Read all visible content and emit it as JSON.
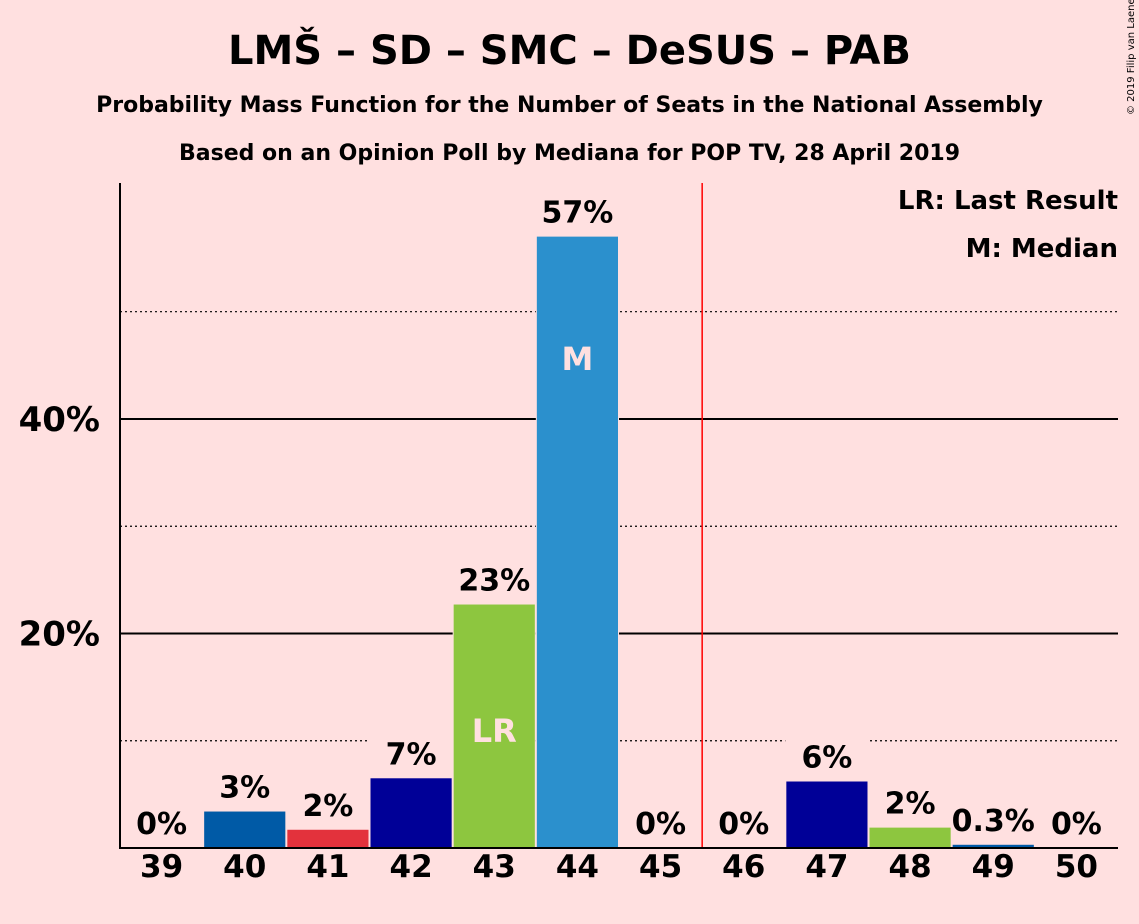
{
  "title": "LMŠ – SD – SMC – DeSUS – PAB",
  "subtitle1": "Probability Mass Function for the Number of Seats in the National Assembly",
  "subtitle2": "Based on an Opinion Poll by Mediana for POP TV, 28 April 2019",
  "copyright": "© 2019 Filip van Laenen",
  "legend": {
    "lr": "LR: Last Result",
    "m": "M: Median"
  },
  "chart_data": {
    "type": "bar",
    "title": "LMŠ – SD – SMC – DeSUS – PAB",
    "categories": [
      "39",
      "40",
      "41",
      "42",
      "43",
      "44",
      "45",
      "46",
      "47",
      "48",
      "49",
      "50"
    ],
    "values": [
      0,
      3.4,
      1.7,
      6.5,
      22.7,
      57,
      0,
      0,
      6.2,
      1.9,
      0.3,
      0
    ],
    "value_labels": [
      "0%",
      "3%",
      "2%",
      "7%",
      "23%",
      "57%",
      "0%",
      "0%",
      "6%",
      "2%",
      "0.3%",
      "0%"
    ],
    "bar_colors": [
      "#005aa6",
      "#005aa6",
      "#e3323c",
      "#000097",
      "#8dc63f",
      "#2b90cd",
      "#2b90cd",
      "#2b90cd",
      "#000097",
      "#8dc63f",
      "#005aa6",
      "#005aa6"
    ],
    "inner_labels": {
      "43": "LR",
      "44": "M"
    },
    "ylim": [
      0,
      62
    ],
    "yticks": [
      {
        "value": 20,
        "label": "20%"
      },
      {
        "value": 40,
        "label": "40%"
      }
    ],
    "minor_gridlines": [
      10,
      30,
      50
    ],
    "majority_line_between": [
      "45",
      "46"
    ],
    "majority_line_color": "#ff0000",
    "xlabel": "",
    "ylabel": ""
  }
}
